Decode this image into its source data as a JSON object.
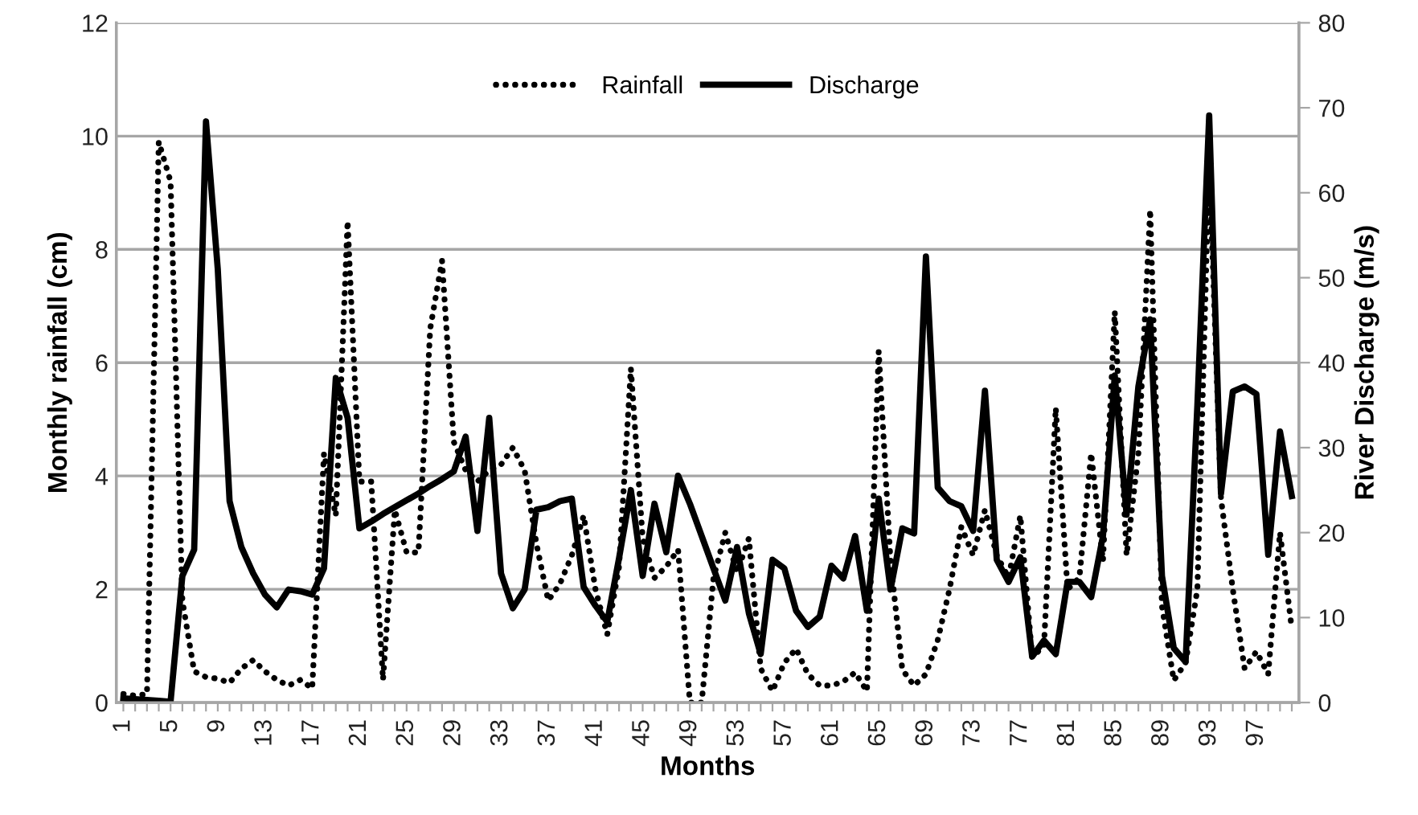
{
  "chart_data": {
    "type": "line",
    "xlabel": "Months",
    "ylabel": "Monthly rainfall (cm)",
    "y2label": "River Discharge (m/s)",
    "categories": [
      "1",
      null,
      null,
      null,
      "5",
      null,
      null,
      null,
      "9",
      null,
      null,
      null,
      "13",
      null,
      null,
      null,
      "17",
      null,
      null,
      null,
      "21",
      null,
      null,
      null,
      "25",
      null,
      null,
      null,
      "29",
      null,
      null,
      null,
      "33",
      null,
      null,
      null,
      "37",
      null,
      null,
      null,
      "41",
      null,
      null,
      null,
      "45",
      null,
      null,
      null,
      "49",
      null,
      null,
      null,
      "53",
      null,
      null,
      null,
      "57",
      null,
      null,
      null,
      "61",
      null,
      null,
      null,
      "65",
      null,
      null,
      null,
      "69",
      null,
      null,
      null,
      "73",
      null,
      null,
      null,
      "77",
      null,
      null,
      null,
      "81",
      null,
      null,
      null,
      "85",
      null,
      null,
      null,
      "89",
      null,
      null,
      null,
      "93",
      null,
      null,
      null,
      "97",
      null,
      null,
      null
    ],
    "ylim": [
      0,
      12
    ],
    "yticks": [
      0,
      2,
      4,
      6,
      8,
      10,
      12
    ],
    "y2lim": [
      0,
      80
    ],
    "y2ticks": [
      0,
      10,
      20,
      30,
      40,
      50,
      60,
      70,
      80
    ],
    "grid": "y",
    "legend": "top",
    "marker": "none",
    "series": [
      {
        "name": "Rainfall",
        "color": "#000000",
        "line_style": "dotted",
        "values": [
          0.15,
          0.12,
          0.15,
          9.9,
          9.2,
          1.8,
          0.55,
          0.45,
          0.42,
          0.35,
          0.6,
          0.75,
          0.55,
          0.4,
          0.3,
          0.4,
          0.25,
          4.4,
          3.3,
          8.5,
          3.9,
          3.9,
          0.4,
          3.4,
          2.65,
          2.65,
          6.6,
          7.8,
          4.6,
          4.1,
          3.9,
          4.1,
          4.2,
          4.5,
          4.1,
          2.8,
          1.8,
          2.1,
          2.6,
          3.3,
          2.0,
          1.2,
          2.4,
          5.9,
          2.9,
          2.2,
          2.4,
          2.7,
          0.0,
          0.0,
          2.2,
          3.0,
          2.3,
          2.9,
          0.6,
          0.2,
          0.7,
          0.95,
          0.5,
          0.3,
          0.3,
          0.37,
          0.53,
          0.2,
          6.2,
          2.5,
          0.58,
          0.3,
          0.5,
          1.1,
          2.0,
          3.1,
          2.6,
          3.4,
          2.6,
          2.2,
          3.3,
          0.8,
          1.0,
          5.2,
          2.0,
          2.2,
          4.4,
          2.5,
          6.9,
          2.6,
          4.4,
          8.7,
          1.7,
          0.39,
          0.7,
          2.0,
          9.6,
          3.6,
          2.0,
          0.6,
          0.9,
          0.5,
          3.0,
          1.3
        ]
      },
      {
        "name": "Discharge",
        "color": "#000000",
        "line_style": "solid",
        "axis": "y2",
        "values": [
          0.5,
          0.4,
          0.3,
          0.2,
          0.1,
          14.9,
          18,
          68.4,
          51,
          23.7,
          18.3,
          15.2,
          12.7,
          11.2,
          13.3,
          13.1,
          12.7,
          15.8,
          38.2,
          33.5,
          20.5,
          21.3,
          22.2,
          23.0,
          23.8,
          24.6,
          25.5,
          26.3,
          27.2,
          31.3,
          20.2,
          33.5,
          15.2,
          11.1,
          13.3,
          22.7,
          23,
          23.7,
          24,
          13.6,
          11.4,
          9.5,
          17,
          25,
          14.9,
          23.4,
          17.7,
          26.7,
          23.4,
          19.6,
          15.8,
          12,
          18.3,
          10.5,
          5.7,
          16.8,
          15.8,
          10.8,
          8.9,
          10.1,
          16.1,
          14.6,
          19.6,
          10.8,
          24,
          13.3,
          20.5,
          19.9,
          52.5,
          25.3,
          23.7,
          23.1,
          20.2,
          36.7,
          16.8,
          14.2,
          17.1,
          5.4,
          7.3,
          5.7,
          14.2,
          14.2,
          12.4,
          19.6,
          38.5,
          22.1,
          37.2,
          45.1,
          14.9,
          6.4,
          4.8,
          35,
          69.1,
          24.6,
          36.6,
          37.2,
          36.3,
          17.4,
          31.9,
          24.3
        ]
      }
    ]
  }
}
